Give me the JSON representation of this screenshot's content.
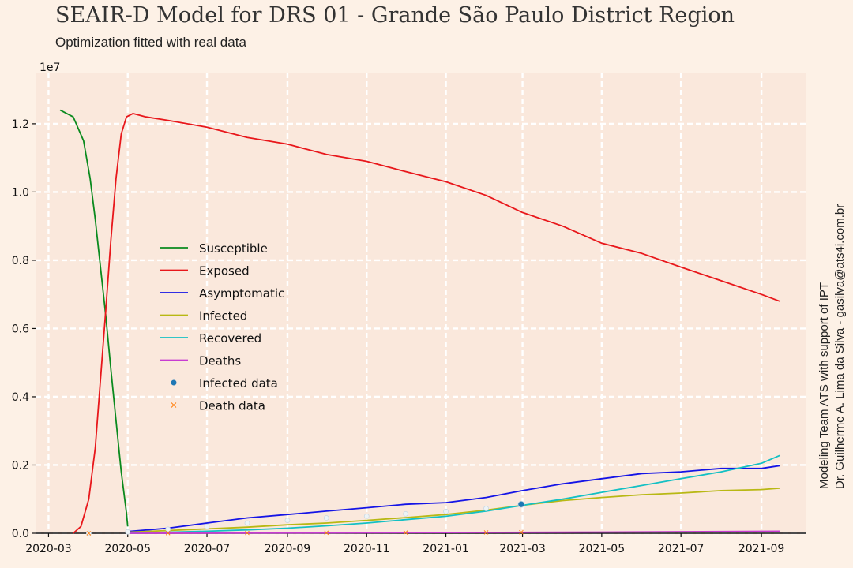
{
  "title": "SEAIR-D Model for DRS 01 - Grande São Paulo District Region",
  "subtitle": "Optimization fitted with real data",
  "side_note": [
    "Modeling Team ATS with support of IPT",
    "Dr. Guilherme A. Lima da Silva - gasilva@ats4i.com.br"
  ],
  "colors": {
    "Susceptible": "#0a8a1e",
    "Exposed": "#e8171b",
    "Asymptomatic": "#1414e6",
    "Infected": "#b8b814",
    "Recovered": "#14c0c4",
    "Deaths": "#c83cd2",
    "Infected data": "#1f77b4",
    "Death data": "#ff7f0e",
    "plot_bg": "#fae8dc",
    "page_bg": "#fdf1e6",
    "grid": "#ffffff"
  },
  "chart_data": {
    "type": "line",
    "title": "SEAIR-D Model for DRS 01 - Grande São Paulo District Region",
    "subtitle": "Optimization fitted with real data",
    "xlabel": "",
    "ylabel": "",
    "y_scale_label": "1e7",
    "x_type": "date",
    "xlim": [
      "2020-02-20",
      "2021-10-05"
    ],
    "ylim": [
      0,
      1.35
    ],
    "x_ticks": [
      "2020-03-01",
      "2020-05-01",
      "2020-07-01",
      "2020-09-01",
      "2020-11-01",
      "2021-01-01",
      "2021-03-01",
      "2021-05-01",
      "2021-07-01",
      "2021-09-01"
    ],
    "x_tick_labels": [
      "2020-03",
      "2020-05",
      "2020-07",
      "2020-09",
      "2020-11",
      "2021-01",
      "2021-03",
      "2021-05",
      "2021-07",
      "2021-09"
    ],
    "y_ticks": [
      0.0,
      0.2,
      0.4,
      0.6,
      0.8,
      1.0,
      1.2
    ],
    "y_tick_labels": [
      "0.0",
      "0.2",
      "0.4",
      "0.6",
      "0.8",
      "1.0",
      "1.2"
    ],
    "grid": true,
    "legend_position": "left",
    "series": [
      {
        "name": "Susceptible",
        "kind": "line",
        "x": [
          "2020-03-10",
          "2020-03-20",
          "2020-03-28",
          "2020-04-02",
          "2020-04-06",
          "2020-04-10",
          "2020-04-14",
          "2020-04-18",
          "2020-04-22",
          "2020-04-26",
          "2020-04-30",
          "2020-05-01"
        ],
        "y": [
          1.24,
          1.22,
          1.15,
          1.04,
          0.92,
          0.78,
          0.64,
          0.48,
          0.33,
          0.18,
          0.06,
          0.02
        ]
      },
      {
        "name": "Exposed",
        "kind": "line",
        "x": [
          "2020-03-20",
          "2020-03-26",
          "2020-04-01",
          "2020-04-06",
          "2020-04-10",
          "2020-04-14",
          "2020-04-18",
          "2020-04-22",
          "2020-04-26",
          "2020-04-30",
          "2020-05-05",
          "2020-05-15",
          "2020-06-01",
          "2020-07-01",
          "2020-08-01",
          "2020-09-01",
          "2020-10-01",
          "2020-11-01",
          "2020-12-01",
          "2021-01-01",
          "2021-02-01",
          "2021-03-01",
          "2021-04-01",
          "2021-05-01",
          "2021-06-01",
          "2021-07-01",
          "2021-08-01",
          "2021-09-01",
          "2021-09-15"
        ],
        "y": [
          0.0,
          0.02,
          0.1,
          0.25,
          0.45,
          0.65,
          0.86,
          1.04,
          1.17,
          1.22,
          1.23,
          1.22,
          1.21,
          1.19,
          1.16,
          1.14,
          1.11,
          1.09,
          1.06,
          1.03,
          0.99,
          0.94,
          0.9,
          0.85,
          0.82,
          0.78,
          0.74,
          0.7,
          0.68
        ]
      },
      {
        "name": "Asymptomatic",
        "kind": "line",
        "x": [
          "2020-05-01",
          "2020-06-01",
          "2020-07-01",
          "2020-08-01",
          "2020-09-01",
          "2020-10-01",
          "2020-11-01",
          "2020-12-01",
          "2021-01-01",
          "2021-02-01",
          "2021-03-01",
          "2021-04-01",
          "2021-05-01",
          "2021-06-01",
          "2021-07-01",
          "2021-08-01",
          "2021-09-01",
          "2021-09-15"
        ],
        "y": [
          0.005,
          0.015,
          0.03,
          0.045,
          0.055,
          0.065,
          0.075,
          0.085,
          0.09,
          0.105,
          0.125,
          0.145,
          0.16,
          0.175,
          0.18,
          0.19,
          0.19,
          0.198
        ]
      },
      {
        "name": "Infected",
        "kind": "line",
        "x": [
          "2020-05-01",
          "2020-06-01",
          "2020-07-01",
          "2020-08-01",
          "2020-09-01",
          "2020-10-01",
          "2020-11-01",
          "2020-12-01",
          "2021-01-01",
          "2021-02-01",
          "2021-03-01",
          "2021-04-01",
          "2021-05-01",
          "2021-06-01",
          "2021-07-01",
          "2021-08-01",
          "2021-09-01",
          "2021-09-15"
        ],
        "y": [
          0.003,
          0.008,
          0.013,
          0.018,
          0.025,
          0.03,
          0.038,
          0.046,
          0.055,
          0.068,
          0.082,
          0.096,
          0.105,
          0.113,
          0.118,
          0.125,
          0.128,
          0.132
        ]
      },
      {
        "name": "Recovered",
        "kind": "line",
        "x": [
          "2020-05-01",
          "2020-06-01",
          "2020-07-01",
          "2020-08-01",
          "2020-09-01",
          "2020-10-01",
          "2020-11-01",
          "2020-12-01",
          "2021-01-01",
          "2021-02-01",
          "2021-03-01",
          "2021-04-01",
          "2021-05-01",
          "2021-06-01",
          "2021-07-01",
          "2021-08-01",
          "2021-09-01",
          "2021-09-15"
        ],
        "y": [
          0.0,
          0.003,
          0.006,
          0.01,
          0.015,
          0.022,
          0.03,
          0.04,
          0.05,
          0.065,
          0.082,
          0.1,
          0.12,
          0.14,
          0.16,
          0.18,
          0.205,
          0.228
        ]
      },
      {
        "name": "Deaths",
        "kind": "line",
        "x": [
          "2020-05-01",
          "2020-09-01",
          "2021-01-01",
          "2021-04-01",
          "2021-06-01",
          "2021-08-01",
          "2021-09-15"
        ],
        "y": [
          0.0,
          0.001,
          0.002,
          0.003,
          0.004,
          0.005,
          0.006
        ]
      },
      {
        "name": "Infected data",
        "kind": "points",
        "x": [
          "2020-04-01",
          "2020-05-01",
          "2020-06-01",
          "2020-07-01",
          "2020-08-01",
          "2020-09-01",
          "2020-10-01",
          "2020-11-01",
          "2020-12-01",
          "2021-01-01",
          "2021-02-01",
          "2021-02-28"
        ],
        "y": [
          0.0,
          0.004,
          0.012,
          0.02,
          0.03,
          0.038,
          0.045,
          0.05,
          0.057,
          0.064,
          0.073,
          0.085
        ]
      },
      {
        "name": "Death data",
        "kind": "markers-x",
        "x": [
          "2020-04-01",
          "2020-06-01",
          "2020-08-01",
          "2020-10-01",
          "2020-12-01",
          "2021-02-01",
          "2021-02-28"
        ],
        "y": [
          0.0,
          0.0005,
          0.001,
          0.0015,
          0.002,
          0.0025,
          0.003
        ]
      }
    ]
  }
}
